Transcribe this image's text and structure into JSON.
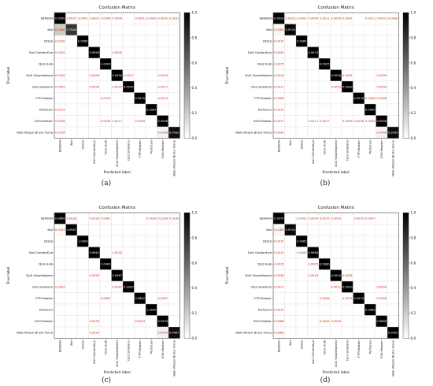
{
  "figure": {
    "captions": [
      "(a)",
      "(b)",
      "(c)",
      "(d)"
    ]
  },
  "colors": {
    "diag": "#000000",
    "low": "#ffffff",
    "text_offdiag": "#cc2200",
    "text_diag": "#ffffff"
  },
  "chart_data": [
    {
      "type": "heatmap",
      "title": "Confusion Matrix",
      "xlabel": "Predicted label",
      "ylabel": "True label",
      "labels": [
        "BENIGN",
        "Bot",
        "DDoS",
        "DoS GoldenEye",
        "DoS Hulk",
        "DoS Slowhttptest",
        "DoS slowloris",
        "FTP-Patator",
        "PortScan",
        "SSH-Patator",
        "Web Attack Brute Force"
      ],
      "colorbar": {
        "range": [
          0.0,
          1.0
        ],
        "ticks": [
          "0.0",
          "0.2",
          "0.4",
          "0.6",
          "0.8",
          "1.0"
        ]
      },
      "grid": true,
      "cells": [
        [
          0,
          0,
          "0.9950"
        ],
        [
          0,
          1,
          "0.0021"
        ],
        [
          0,
          2,
          "0.0001"
        ],
        [
          0,
          3,
          "0.0001"
        ],
        [
          0,
          4,
          "0.0008"
        ],
        [
          0,
          5,
          "0.0004"
        ],
        [
          0,
          7,
          "0.0001"
        ],
        [
          0,
          8,
          "0.0003"
        ],
        [
          0,
          9,
          "0.0002"
        ],
        [
          0,
          10,
          "0.0031"
        ],
        [
          1,
          0,
          "0.2060"
        ],
        [
          1,
          1,
          "0.7940"
        ],
        [
          2,
          0,
          "0.0035"
        ],
        [
          2,
          2,
          "0.9965"
        ],
        [
          3,
          0,
          "0.0005"
        ],
        [
          3,
          3,
          "0.9990"
        ],
        [
          3,
          5,
          "0.0005"
        ],
        [
          4,
          4,
          "1.0000"
        ],
        [
          5,
          0,
          "0.0044"
        ],
        [
          5,
          3,
          "0.0009"
        ],
        [
          5,
          5,
          "0.9930"
        ],
        [
          5,
          6,
          "0.0017"
        ],
        [
          5,
          9,
          "0.0009"
        ],
        [
          6,
          0,
          "0.0009"
        ],
        [
          6,
          3,
          "0.0009"
        ],
        [
          6,
          5,
          "0.0043"
        ],
        [
          6,
          6,
          "0.9920"
        ],
        [
          6,
          9,
          "0.0017"
        ],
        [
          7,
          4,
          "0.0013"
        ],
        [
          7,
          7,
          "0.9970"
        ],
        [
          7,
          9,
          "0.0013"
        ],
        [
          8,
          0,
          "0.0013"
        ],
        [
          8,
          8,
          "0.9987"
        ],
        [
          9,
          0,
          "0.0034"
        ],
        [
          9,
          4,
          "0.0034"
        ],
        [
          9,
          5,
          "0.0017"
        ],
        [
          9,
          7,
          "0.0009"
        ],
        [
          9,
          9,
          "0.9906"
        ],
        [
          10,
          0,
          "0.0134"
        ],
        [
          10,
          9,
          "0.0436"
        ],
        [
          10,
          10,
          "0.9430"
        ]
      ]
    },
    {
      "type": "heatmap",
      "title": "Confusion Matrix",
      "xlabel": "Predicted label",
      "ylabel": "True label",
      "labels": [
        "BENIGN",
        "Bot",
        "DDoS",
        "DoS GoldenEye",
        "DoS Hulk",
        "DoS Slowhttptest",
        "DoS slowloris",
        "FTP-Patator",
        "PortScan",
        "SSH-Patator",
        "Web Attack Brute Force"
      ],
      "colorbar": {
        "range": [
          0.0,
          1.0
        ],
        "ticks": [
          "0.0",
          "0.2",
          "0.4",
          "0.6",
          "0.8",
          "1.0"
        ]
      },
      "grid": true,
      "cells": [
        [
          0,
          0,
          "0.9920"
        ],
        [
          0,
          1,
          "0.0022"
        ],
        [
          0,
          2,
          "0.0001"
        ],
        [
          0,
          3,
          "0.0004"
        ],
        [
          0,
          4,
          "0.0011"
        ],
        [
          0,
          5,
          "0.0003"
        ],
        [
          0,
          6,
          "0.0001"
        ],
        [
          0,
          8,
          "0.0011"
        ],
        [
          0,
          9,
          "0.0003"
        ],
        [
          0,
          10,
          "0.0030"
        ],
        [
          1,
          0,
          "0.0280"
        ],
        [
          1,
          1,
          "0.9720"
        ],
        [
          2,
          0,
          "0.0015"
        ],
        [
          2,
          2,
          "0.9985"
        ],
        [
          3,
          0,
          "0.0030"
        ],
        [
          3,
          3,
          "0.9970"
        ],
        [
          4,
          0,
          "0.0075"
        ],
        [
          4,
          4,
          "0.9925"
        ],
        [
          5,
          0,
          "0.0016"
        ],
        [
          5,
          5,
          "0.9930"
        ],
        [
          5,
          6,
          "0.0035"
        ],
        [
          5,
          9,
          "0.0009"
        ],
        [
          6,
          0,
          "0.0017"
        ],
        [
          6,
          5,
          "0.0043"
        ],
        [
          6,
          6,
          "0.9930"
        ],
        [
          6,
          9,
          "0.0009"
        ],
        [
          7,
          0,
          "0.0006"
        ],
        [
          7,
          7,
          "0.9970"
        ],
        [
          7,
          8,
          "0.0006"
        ],
        [
          7,
          9,
          "0.0006"
        ],
        [
          8,
          0,
          "0.0010"
        ],
        [
          8,
          8,
          "0.9990"
        ],
        [
          9,
          0,
          "0.0017"
        ],
        [
          9,
          3,
          "0.0017"
        ],
        [
          9,
          4,
          "0.0017"
        ],
        [
          9,
          6,
          "0.0009"
        ],
        [
          9,
          7,
          "0.0026"
        ],
        [
          9,
          8,
          "0.0009"
        ],
        [
          9,
          9,
          "0.9906"
        ],
        [
          10,
          0,
          "0.0030"
        ],
        [
          10,
          9,
          "0.0440"
        ],
        [
          10,
          10,
          "0.9530"
        ]
      ]
    },
    {
      "type": "heatmap",
      "title": "Confusion Matrix",
      "xlabel": "Predicted label",
      "ylabel": "True label",
      "labels": [
        "BENIGN",
        "Bot",
        "DDoS",
        "DoS GoldenEye",
        "DoS Hulk",
        "DoS Slowhttptest",
        "DoS slowloris",
        "FTP-Patator",
        "PortScan",
        "SSH-Patator",
        "Web Attack Brute Force"
      ],
      "colorbar": {
        "range": [
          0.0,
          1.0
        ],
        "ticks": [
          "0.0",
          "0.2",
          "0.4",
          "0.6",
          "0.8",
          "1.0"
        ]
      },
      "grid": true,
      "cells": [
        [
          0,
          0,
          "0.9800"
        ],
        [
          0,
          1,
          "0.0033"
        ],
        [
          0,
          3,
          "0.0033"
        ],
        [
          0,
          4,
          "0.0067"
        ],
        [
          0,
          8,
          "0.0033"
        ],
        [
          0,
          9,
          "0.0100"
        ],
        [
          0,
          10,
          "0.0100"
        ],
        [
          1,
          0,
          "0.0033"
        ],
        [
          1,
          1,
          "0.9967"
        ],
        [
          2,
          2,
          "1.0000"
        ],
        [
          3,
          3,
          "0.9967"
        ],
        [
          3,
          5,
          "0.0033"
        ],
        [
          4,
          4,
          "1.0000"
        ],
        [
          5,
          3,
          "0.0033"
        ],
        [
          5,
          5,
          "0.9967"
        ],
        [
          6,
          0,
          "0.0033"
        ],
        [
          6,
          5,
          "0.0067"
        ],
        [
          6,
          6,
          "0.9900"
        ],
        [
          7,
          4,
          "0.0067"
        ],
        [
          7,
          7,
          "0.9867"
        ],
        [
          7,
          9,
          "0.0067"
        ],
        [
          8,
          8,
          "1.0000"
        ],
        [
          9,
          3,
          "0.0033"
        ],
        [
          9,
          7,
          "0.0033"
        ],
        [
          9,
          9,
          "0.9933"
        ],
        [
          10,
          3,
          "0.0033"
        ],
        [
          10,
          9,
          "0.0500"
        ],
        [
          10,
          10,
          "0.9467"
        ]
      ]
    },
    {
      "type": "heatmap",
      "title": "Confusion Matrix",
      "xlabel": "Predicted label",
      "ylabel": "True label",
      "labels": [
        "BENIGN",
        "Bot",
        "DDoS",
        "DoS GoldenEye",
        "DoS Hulk",
        "DoS Slowhttptest",
        "DoS slowloris",
        "FTP-Patator",
        "PortScan",
        "SSH-Patator",
        "Web Attack Brute Force"
      ],
      "colorbar": {
        "range": [
          0.0,
          1.0
        ],
        "ticks": [
          "0.0",
          "0.2",
          "0.4",
          "0.6",
          "0.8",
          "1.0"
        ]
      },
      "grid": true,
      "cells": [
        [
          0,
          0,
          "0.9970"
        ],
        [
          0,
          2,
          "0.0001"
        ],
        [
          0,
          3,
          "0.0004"
        ],
        [
          0,
          4,
          "0.0075"
        ],
        [
          0,
          5,
          "0.0003"
        ],
        [
          0,
          7,
          "0.0003"
        ],
        [
          0,
          8,
          "0.0007"
        ],
        [
          1,
          0,
          "0.0280"
        ],
        [
          1,
          1,
          "0.9720"
        ],
        [
          2,
          0,
          "0.0015"
        ],
        [
          2,
          2,
          "0.9985"
        ],
        [
          3,
          0,
          "0.0015"
        ],
        [
          3,
          2,
          "0.0005"
        ],
        [
          3,
          3,
          "0.9980"
        ],
        [
          4,
          0,
          "0.0015"
        ],
        [
          4,
          3,
          "0.0005"
        ],
        [
          4,
          4,
          "0.9980"
        ],
        [
          5,
          0,
          "0.0036"
        ],
        [
          5,
          3,
          "0.0018"
        ],
        [
          5,
          5,
          "0.9910"
        ],
        [
          5,
          6,
          "0.0036"
        ],
        [
          6,
          0,
          "0.0017"
        ],
        [
          6,
          5,
          "0.0051"
        ],
        [
          6,
          6,
          "0.9920"
        ],
        [
          6,
          9,
          "0.0009"
        ],
        [
          7,
          4,
          "0.0006"
        ],
        [
          7,
          6,
          "0.0019"
        ],
        [
          7,
          7,
          "0.9970"
        ],
        [
          7,
          9,
          "0.0006"
        ],
        [
          8,
          0,
          "0.0015"
        ],
        [
          8,
          8,
          "0.9985"
        ],
        [
          9,
          0,
          "0.0068"
        ],
        [
          9,
          4,
          "0.0043"
        ],
        [
          9,
          5,
          "0.0009"
        ],
        [
          9,
          9,
          "0.9880"
        ],
        [
          10,
          0,
          "0.0080"
        ],
        [
          10,
          10,
          "0.9920"
        ]
      ]
    }
  ]
}
